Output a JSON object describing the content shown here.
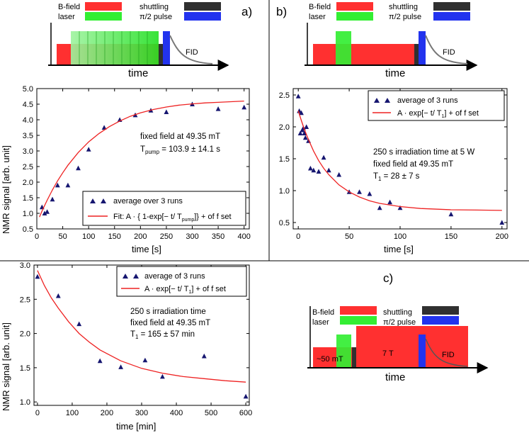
{
  "colors": {
    "bfield": "#ff3030",
    "laser": "#33ee33",
    "shuttling": "#303030",
    "pulse": "#2233ee",
    "fit": "#ee2222",
    "marker": "#161670",
    "fid": "#777777"
  },
  "schematics": [
    {
      "id": "a",
      "tag": "a)",
      "legend": {
        "bfield": "B-field",
        "laser": "laser",
        "shuttling": "shuttling",
        "pulse": "π/2 pulse"
      },
      "axis_label": "time",
      "fid_label": "FID",
      "variant": "stepped-laser"
    },
    {
      "id": "b",
      "tag": "b)",
      "legend": {
        "bfield": "B-field",
        "laser": "laser",
        "shuttling": "shuttling",
        "pulse": "π/2 pulse"
      },
      "axis_label": "time",
      "fid_label": "FID",
      "variant": "single-laser"
    },
    {
      "id": "c",
      "tag": "c)",
      "legend": {
        "bfield": "B-field",
        "laser": "laser",
        "shuttling": "shuttling",
        "pulse": "π/2 pulse"
      },
      "axis_label": "time",
      "fid_label": "FID",
      "low_field_label": "~50 mT",
      "high_field_label": "7 T",
      "variant": "two-field"
    }
  ],
  "chart_data": [
    {
      "id": "a",
      "type": "scatter",
      "xlabel": "time [s]",
      "ylabel": "NMR signal [arb. unit]",
      "xlim": [
        0,
        410
      ],
      "ylim": [
        0.5,
        5.0
      ],
      "xticks": [
        0,
        50,
        100,
        150,
        200,
        250,
        300,
        350,
        400
      ],
      "yticks": [
        0.5,
        1.0,
        1.5,
        2.0,
        2.5,
        3.0,
        3.5,
        4.0,
        4.5,
        5.0
      ],
      "series": [
        {
          "name": "average over 3 runs",
          "kind": "points",
          "x": [
            10,
            15,
            20,
            30,
            40,
            60,
            80,
            100,
            130,
            160,
            190,
            220,
            250,
            300,
            350,
            400
          ],
          "y": [
            1.2,
            1.0,
            1.05,
            1.45,
            1.9,
            1.9,
            2.45,
            3.05,
            3.75,
            4.0,
            4.15,
            4.3,
            4.25,
            4.5,
            4.35,
            4.4
          ]
        },
        {
          "name": "Fit: A · { 1-exp[− t/ T_pump]} + offset",
          "kind": "line",
          "x": [
            5,
            10,
            15,
            20,
            30,
            40,
            50,
            60,
            80,
            100,
            120,
            140,
            160,
            180,
            200,
            225,
            250,
            275,
            300,
            325,
            350,
            375,
            400
          ],
          "y": [
            0.88,
            1.07,
            1.25,
            1.42,
            1.75,
            2.04,
            2.3,
            2.54,
            2.95,
            3.29,
            3.56,
            3.78,
            3.96,
            4.11,
            4.22,
            4.33,
            4.41,
            4.47,
            4.51,
            4.54,
            4.56,
            4.58,
            4.6
          ]
        }
      ],
      "legend_position": "lower-right",
      "annotations": [
        "fixed field at 49.35 mT",
        "T_pump = 103.9 ± 14.1 s"
      ]
    },
    {
      "id": "b",
      "type": "scatter",
      "xlabel": "time [s]",
      "ylabel": "",
      "xlim": [
        -5,
        205
      ],
      "ylim": [
        0.4,
        2.6
      ],
      "xticks": [
        0,
        50,
        100,
        150,
        200
      ],
      "yticks": [
        0.5,
        1.0,
        1.5,
        2.0,
        2.5
      ],
      "series": [
        {
          "name": "average of 3 runs",
          "kind": "points",
          "x": [
            0,
            1,
            2,
            3,
            4,
            5,
            6,
            7,
            8,
            10,
            12,
            15,
            20,
            25,
            30,
            40,
            50,
            60,
            70,
            80,
            90,
            100,
            150,
            200
          ],
          "y": [
            2.48,
            2.25,
            1.9,
            2.22,
            1.95,
            1.98,
            1.9,
            1.83,
            2.0,
            1.78,
            1.35,
            1.32,
            1.3,
            1.52,
            1.32,
            1.25,
            0.98,
            0.98,
            0.95,
            0.73,
            0.82,
            0.73,
            0.63,
            0.5
          ]
        },
        {
          "name": "A · exp[− t/ T1] + offset",
          "kind": "line",
          "x": [
            0,
            3,
            6,
            10,
            15,
            20,
            25,
            30,
            40,
            50,
            60,
            70,
            80,
            100,
            120,
            150,
            175,
            200
          ],
          "y": [
            2.25,
            2.1,
            1.96,
            1.8,
            1.62,
            1.47,
            1.35,
            1.25,
            1.09,
            0.98,
            0.9,
            0.84,
            0.8,
            0.75,
            0.72,
            0.7,
            0.695,
            0.69
          ]
        }
      ],
      "legend_position": "top-right",
      "annotations": [
        "250 s irradiation time at 5 W",
        "fixed field at 49.35 mT",
        "T1 = 28 ± 7 s"
      ]
    },
    {
      "id": "c",
      "type": "scatter",
      "xlabel": "time [min]",
      "ylabel": "NMR signal [arb. unit]",
      "xlim": [
        -10,
        610
      ],
      "ylim": [
        0.95,
        3.0
      ],
      "xticks": [
        0,
        100,
        200,
        300,
        400,
        500,
        600
      ],
      "yticks": [
        1.0,
        1.5,
        2.0,
        2.5,
        3.0
      ],
      "series": [
        {
          "name": "average of 3 runs",
          "kind": "points",
          "x": [
            0,
            60,
            120,
            180,
            240,
            310,
            360,
            480,
            600
          ],
          "y": [
            2.83,
            2.55,
            2.14,
            1.6,
            1.51,
            1.61,
            1.37,
            1.67,
            1.08
          ]
        },
        {
          "name": "A · exp[− t/ T1] + offset",
          "kind": "line",
          "x": [
            0,
            20,
            40,
            60,
            90,
            120,
            150,
            180,
            240,
            300,
            360,
            420,
            480,
            540,
            600
          ],
          "y": [
            2.92,
            2.7,
            2.52,
            2.37,
            2.17,
            2.0,
            1.87,
            1.76,
            1.6,
            1.49,
            1.42,
            1.37,
            1.34,
            1.31,
            1.29
          ]
        }
      ],
      "legend_position": "top-right",
      "annotations": [
        "250 s irradiation time",
        "fixed field at 49.35 mT",
        "T1 = 165 ± 57 min"
      ]
    }
  ]
}
